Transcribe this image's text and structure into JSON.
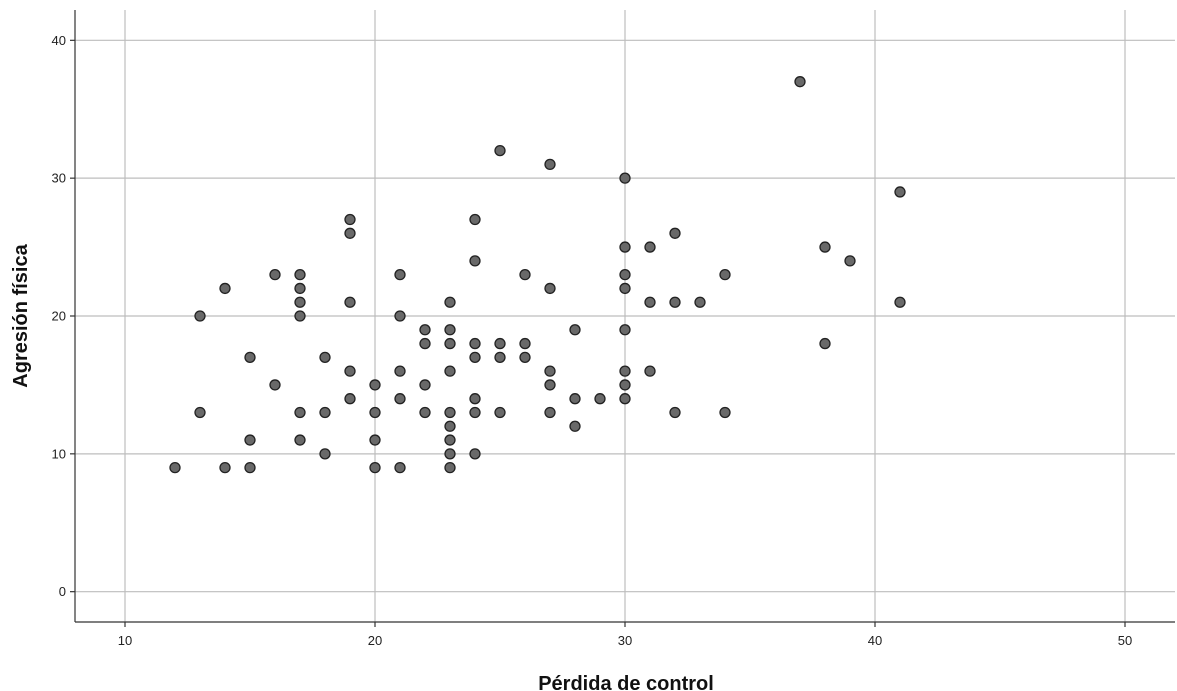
{
  "chart_data": {
    "type": "scatter",
    "xlabel": "Pérdida de control",
    "ylabel": "Agresión física",
    "xlim": [
      8,
      52
    ],
    "ylim": [
      -2.2,
      42.2
    ],
    "xticks": [
      10,
      20,
      30,
      40,
      50
    ],
    "yticks": [
      0,
      10,
      20,
      30,
      40
    ],
    "xtick_labels": [
      "10",
      "20",
      "30",
      "40",
      "50"
    ],
    "ytick_labels": [
      "0",
      "10",
      "20",
      "30",
      "40"
    ],
    "grid": true,
    "point_color": "#696969",
    "point_edge_color": "#222222",
    "points": [
      {
        "x": 12,
        "y": 9
      },
      {
        "x": 13,
        "y": 20
      },
      {
        "x": 13,
        "y": 13
      },
      {
        "x": 14,
        "y": 22
      },
      {
        "x": 14,
        "y": 9
      },
      {
        "x": 15,
        "y": 17
      },
      {
        "x": 15,
        "y": 11
      },
      {
        "x": 15,
        "y": 9
      },
      {
        "x": 16,
        "y": 23
      },
      {
        "x": 16,
        "y": 15
      },
      {
        "x": 17,
        "y": 23
      },
      {
        "x": 17,
        "y": 22
      },
      {
        "x": 17,
        "y": 21
      },
      {
        "x": 17,
        "y": 20
      },
      {
        "x": 17,
        "y": 13
      },
      {
        "x": 17,
        "y": 11
      },
      {
        "x": 18,
        "y": 17
      },
      {
        "x": 18,
        "y": 13
      },
      {
        "x": 18,
        "y": 10
      },
      {
        "x": 19,
        "y": 27
      },
      {
        "x": 19,
        "y": 26
      },
      {
        "x": 19,
        "y": 21
      },
      {
        "x": 19,
        "y": 16
      },
      {
        "x": 19,
        "y": 14
      },
      {
        "x": 20,
        "y": 15
      },
      {
        "x": 20,
        "y": 13
      },
      {
        "x": 20,
        "y": 11
      },
      {
        "x": 20,
        "y": 9
      },
      {
        "x": 21,
        "y": 23
      },
      {
        "x": 21,
        "y": 20
      },
      {
        "x": 21,
        "y": 16
      },
      {
        "x": 21,
        "y": 14
      },
      {
        "x": 21,
        "y": 9
      },
      {
        "x": 22,
        "y": 19
      },
      {
        "x": 22,
        "y": 18
      },
      {
        "x": 22,
        "y": 15
      },
      {
        "x": 22,
        "y": 13
      },
      {
        "x": 23,
        "y": 21
      },
      {
        "x": 23,
        "y": 19
      },
      {
        "x": 23,
        "y": 18
      },
      {
        "x": 23,
        "y": 16
      },
      {
        "x": 23,
        "y": 13
      },
      {
        "x": 23,
        "y": 12
      },
      {
        "x": 23,
        "y": 11
      },
      {
        "x": 23,
        "y": 10
      },
      {
        "x": 23,
        "y": 9
      },
      {
        "x": 24,
        "y": 27
      },
      {
        "x": 24,
        "y": 24
      },
      {
        "x": 24,
        "y": 18
      },
      {
        "x": 24,
        "y": 17
      },
      {
        "x": 24,
        "y": 14
      },
      {
        "x": 24,
        "y": 13
      },
      {
        "x": 24,
        "y": 10
      },
      {
        "x": 25,
        "y": 32
      },
      {
        "x": 25,
        "y": 18
      },
      {
        "x": 25,
        "y": 17
      },
      {
        "x": 25,
        "y": 13
      },
      {
        "x": 26,
        "y": 23
      },
      {
        "x": 26,
        "y": 18
      },
      {
        "x": 26,
        "y": 17
      },
      {
        "x": 27,
        "y": 31
      },
      {
        "x": 27,
        "y": 22
      },
      {
        "x": 27,
        "y": 16
      },
      {
        "x": 27,
        "y": 15
      },
      {
        "x": 27,
        "y": 13
      },
      {
        "x": 28,
        "y": 19
      },
      {
        "x": 28,
        "y": 14
      },
      {
        "x": 28,
        "y": 12
      },
      {
        "x": 29,
        "y": 14
      },
      {
        "x": 30,
        "y": 30
      },
      {
        "x": 30,
        "y": 25
      },
      {
        "x": 30,
        "y": 23
      },
      {
        "x": 30,
        "y": 22
      },
      {
        "x": 30,
        "y": 19
      },
      {
        "x": 30,
        "y": 16
      },
      {
        "x": 30,
        "y": 15
      },
      {
        "x": 30,
        "y": 14
      },
      {
        "x": 31,
        "y": 25
      },
      {
        "x": 31,
        "y": 21
      },
      {
        "x": 31,
        "y": 16
      },
      {
        "x": 32,
        "y": 26
      },
      {
        "x": 32,
        "y": 21
      },
      {
        "x": 32,
        "y": 13
      },
      {
        "x": 33,
        "y": 21
      },
      {
        "x": 34,
        "y": 23
      },
      {
        "x": 34,
        "y": 13
      },
      {
        "x": 37,
        "y": 37
      },
      {
        "x": 38,
        "y": 25
      },
      {
        "x": 38,
        "y": 18
      },
      {
        "x": 39,
        "y": 24
      },
      {
        "x": 41,
        "y": 29
      },
      {
        "x": 41,
        "y": 21
      }
    ]
  }
}
